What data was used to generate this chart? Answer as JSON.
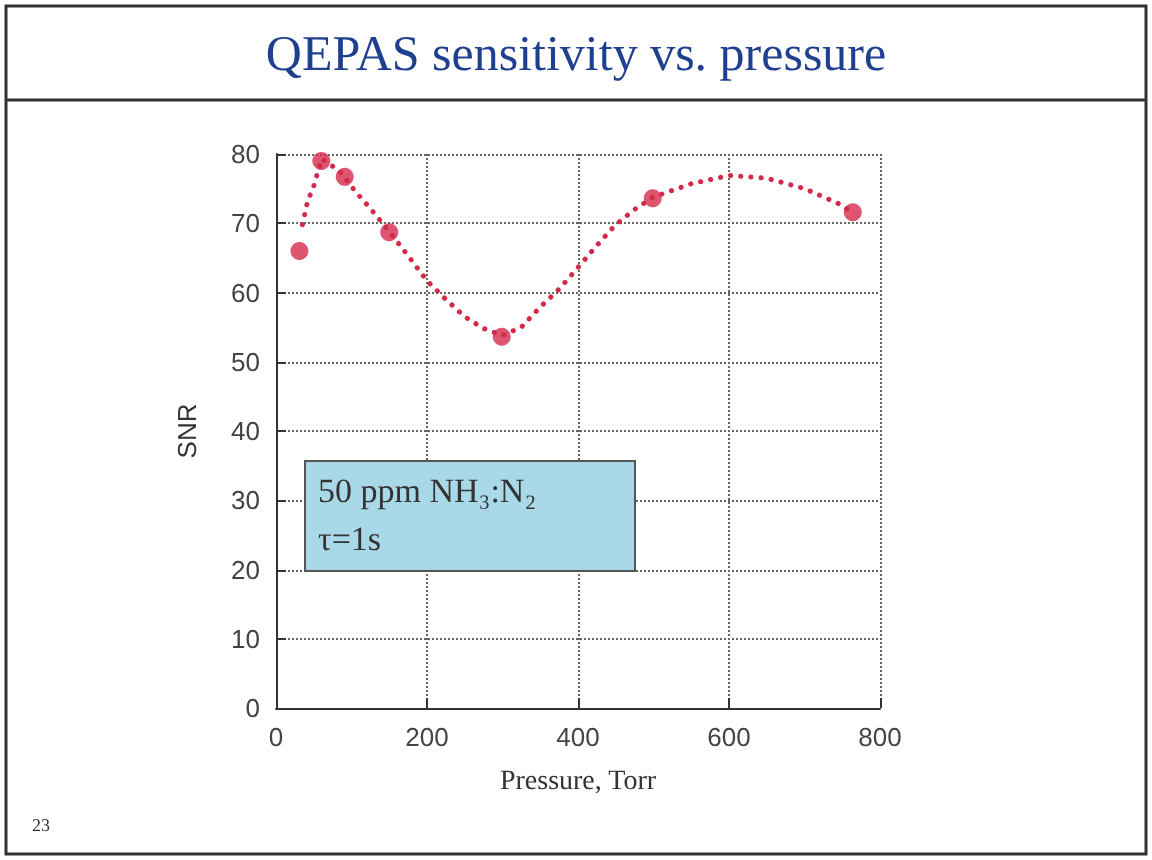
{
  "chart_data": {
    "type": "scatter",
    "title": "QEPAS sensitivity vs. pressure",
    "xlabel": "Pressure, Torr",
    "ylabel": "SNR",
    "annotations": [
      "50 ppm NH₃:N₂\nτ=1s",
      "23"
    ],
    "xlim": [
      0,
      800
    ],
    "xticks": [
      0,
      200,
      400,
      600,
      800
    ],
    "ylim": [
      0,
      80
    ],
    "yticks": [
      0,
      10,
      20,
      30,
      40,
      50,
      60,
      70,
      80
    ],
    "grid": true,
    "series": [
      {
        "color": "#d42a4a",
        "marker": "circle",
        "x": [
          31,
          60,
          91,
          150,
          299,
          499,
          764
        ],
        "values": [
          66,
          79,
          76.7,
          68.7,
          53.6,
          73.6,
          71.6
        ]
      },
      {
        "type": "line",
        "color": "#d42a4a",
        "marker": "none",
        "line_style": "dotted",
        "x": [
          35,
          42,
          49,
          56,
          61,
          73,
          87,
          105,
          122,
          135,
          150,
          175,
          200,
          225,
          250,
          275,
          300,
          325,
          350,
          375,
          400,
          425,
          450,
          475,
          500,
          550,
          600,
          650,
          700,
          750,
          764
        ],
        "values": [
          69.8,
          73.3,
          75,
          77.6,
          79.3,
          78.4,
          77.2,
          74.6,
          72.5,
          70.8,
          68.8,
          65.3,
          61.7,
          59,
          56.5,
          54.8,
          53.8,
          55,
          57.9,
          60.5,
          63.6,
          66.8,
          69.8,
          72,
          73.8,
          75.7,
          76.9,
          76.5,
          75,
          72.6,
          71.4
        ]
      }
    ]
  }
}
